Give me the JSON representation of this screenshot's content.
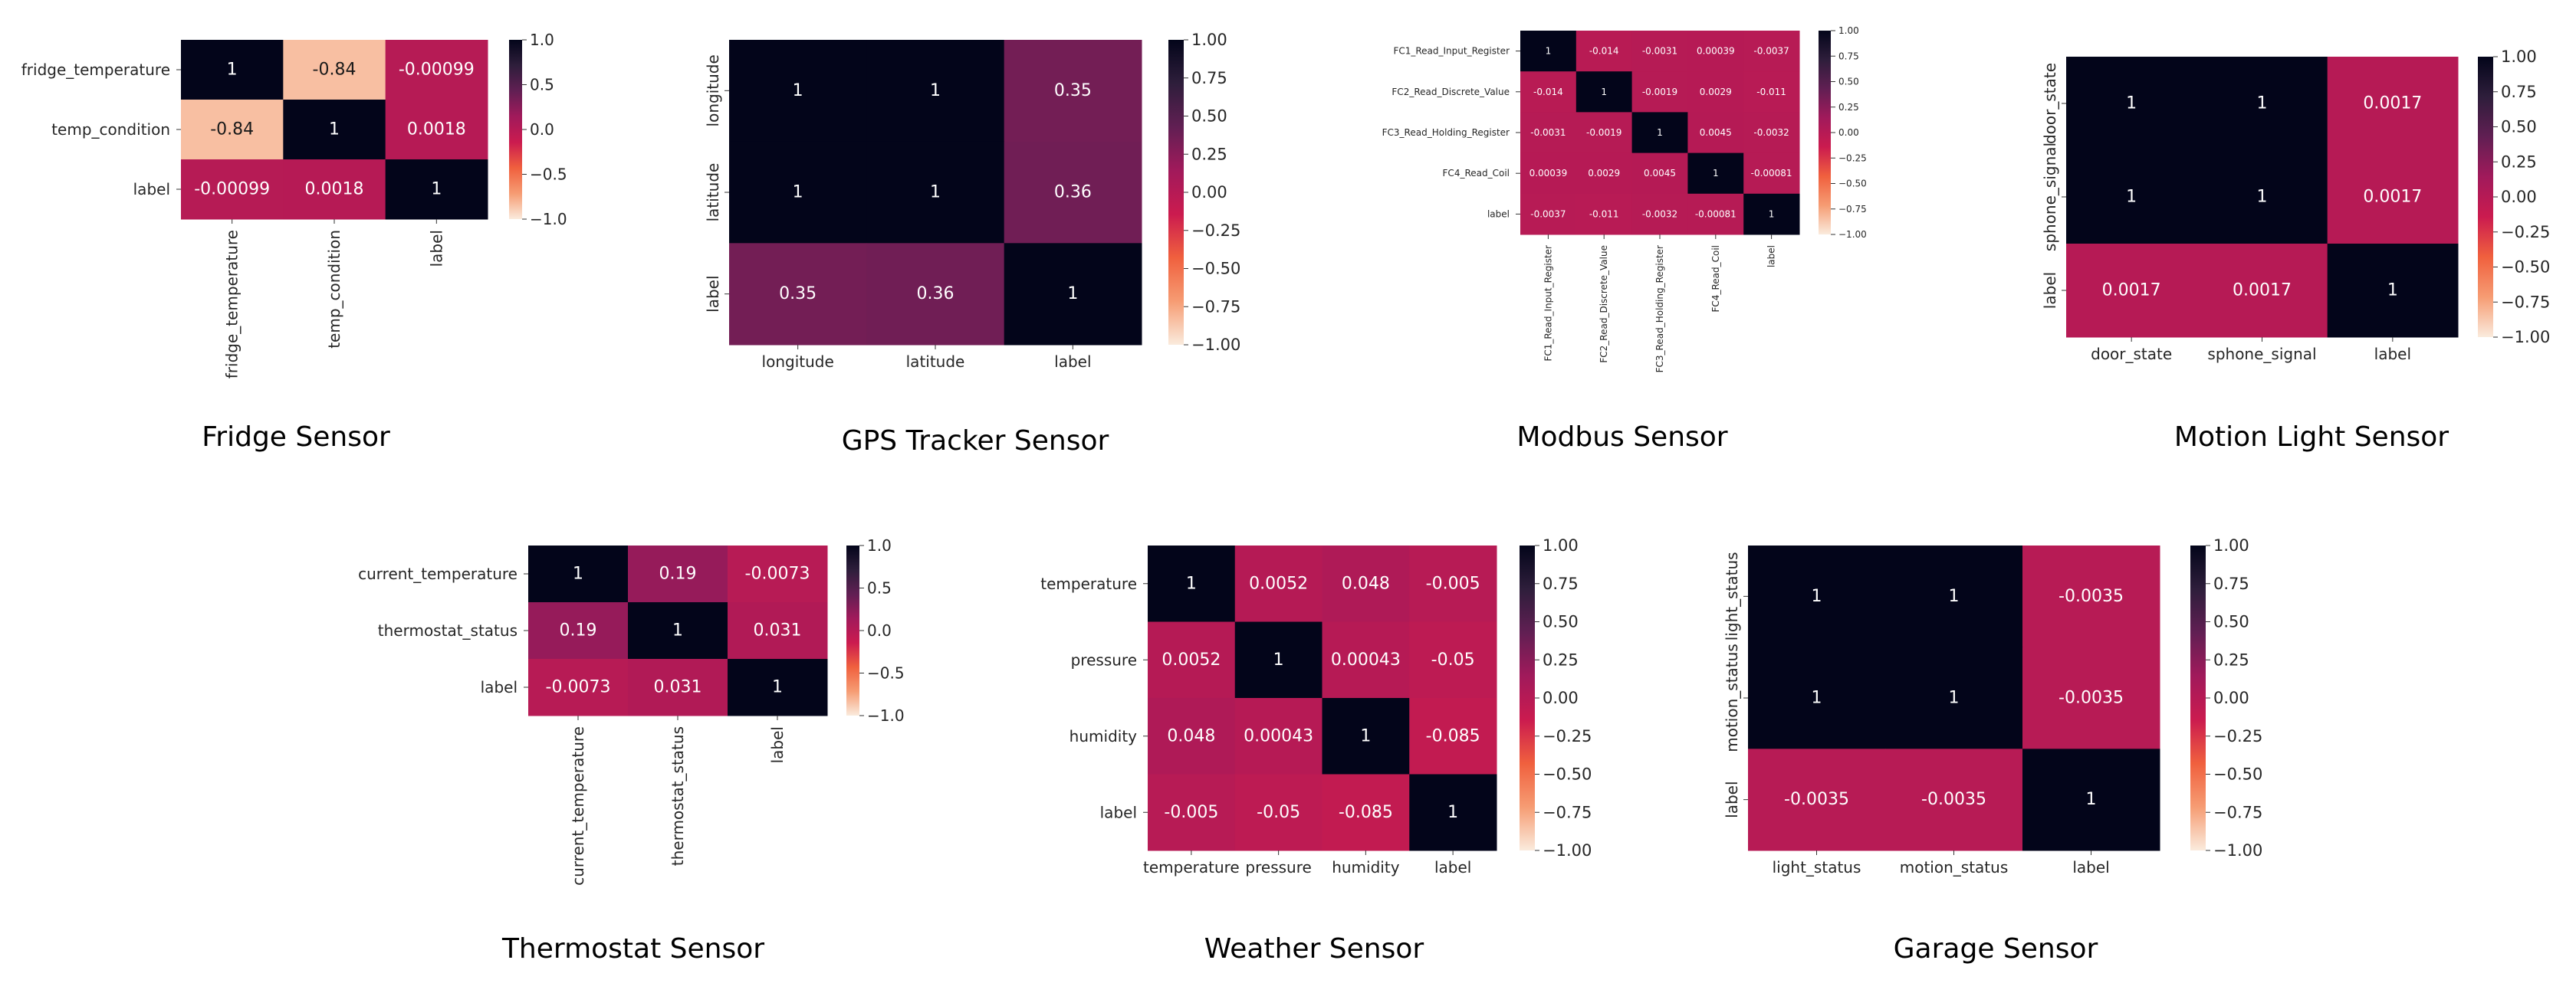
{
  "figure": {
    "title": ""
  },
  "colorscale": {
    "stops": [
      "#faebdd",
      "#f69c73",
      "#f0603e",
      "#cb1b4f",
      "#a11a5b",
      "#611f53",
      "#2e1e3b",
      "#03051a"
    ],
    "vmin": -1,
    "vmax": 1
  },
  "chart_data": [
    {
      "type": "heatmap",
      "title": "Fridge Sensor",
      "rows": [
        "fridge_temperature",
        "temp_condition",
        "label"
      ],
      "cols": [
        "fridge_temperature",
        "temp_condition",
        "label"
      ],
      "values": [
        [
          1,
          -0.84,
          -0.00099
        ],
        [
          -0.84,
          1,
          0.0018
        ],
        [
          -0.00099,
          0.0018,
          1
        ]
      ],
      "cell_labels": [
        [
          "1",
          "-0.84",
          "-0.00099"
        ],
        [
          "-0.84",
          "1",
          "0.0018"
        ],
        [
          "-0.00099",
          "0.0018",
          "1"
        ]
      ],
      "colorbar_ticks": [
        "1.0",
        "0.5",
        "0.0",
        "−0.5",
        "−1.0"
      ],
      "colorbar_values": [
        1.0,
        0.5,
        0.0,
        -0.5,
        -1.0
      ],
      "col_label_rotation": "vertical"
    },
    {
      "type": "heatmap",
      "title": "GPS Tracker Sensor",
      "rows": [
        "longitude",
        "latitude",
        "label"
      ],
      "cols": [
        "longitude",
        "latitude",
        "label"
      ],
      "values": [
        [
          1,
          1,
          0.35
        ],
        [
          1,
          1,
          0.36
        ],
        [
          0.35,
          0.36,
          1
        ]
      ],
      "cell_labels": [
        [
          "1",
          "1",
          "0.35"
        ],
        [
          "1",
          "1",
          "0.36"
        ],
        [
          "0.35",
          "0.36",
          "1"
        ]
      ],
      "colorbar_ticks": [
        "1.00",
        "0.75",
        "0.50",
        "0.25",
        "0.00",
        "−0.25",
        "−0.50",
        "−0.75",
        "−1.00"
      ],
      "colorbar_values": [
        1.0,
        0.75,
        0.5,
        0.25,
        0.0,
        -0.25,
        -0.5,
        -0.75,
        -1.0
      ],
      "row_label_rotation": "vertical"
    },
    {
      "type": "heatmap",
      "title": "Modbus Sensor",
      "rows": [
        "FC1_Read_Input_Register",
        "FC2_Read_Discrete_Value",
        "FC3_Read_Holding_Register",
        "FC4_Read_Coil",
        "label"
      ],
      "cols": [
        "FC1_Read_Input_Register",
        "FC2_Read_Discrete_Value",
        "FC3_Read_Holding_Register",
        "FC4_Read_Coil",
        "label"
      ],
      "values": [
        [
          1,
          -0.014,
          -0.0031,
          0.00039,
          -0.0037
        ],
        [
          -0.014,
          1,
          -0.0019,
          0.0029,
          -0.011
        ],
        [
          -0.0031,
          -0.0019,
          1,
          0.0045,
          -0.0032
        ],
        [
          0.00039,
          0.0029,
          0.0045,
          1,
          -0.00081
        ],
        [
          -0.0037,
          -0.011,
          -0.0032,
          -0.00081,
          1
        ]
      ],
      "cell_labels": [
        [
          "1",
          "-0.014",
          "-0.0031",
          "0.00039",
          "-0.0037"
        ],
        [
          "-0.014",
          "1",
          "-0.0019",
          "0.0029",
          "-0.011"
        ],
        [
          "-0.0031",
          "-0.0019",
          "1",
          "0.0045",
          "-0.0032"
        ],
        [
          "0.00039",
          "0.0029",
          "0.0045",
          "1",
          "-0.00081"
        ],
        [
          "-0.0037",
          "-0.011",
          "-0.0032",
          "-0.00081",
          "1"
        ]
      ],
      "colorbar_ticks": [
        "1.00",
        "0.75",
        "0.50",
        "0.25",
        "0.00",
        "−0.25",
        "−0.50",
        "−0.75",
        "−1.00"
      ],
      "colorbar_values": [
        1.0,
        0.75,
        0.5,
        0.25,
        0.0,
        -0.25,
        -0.5,
        -0.75,
        -1.0
      ],
      "col_label_rotation": "vertical"
    },
    {
      "type": "heatmap",
      "title": "Motion Light Sensor",
      "rows": [
        "door_state",
        "sphone_signal",
        "label"
      ],
      "cols": [
        "door_state",
        "sphone_signal",
        "label"
      ],
      "values": [
        [
          1,
          1,
          0.0017
        ],
        [
          1,
          1,
          0.0017
        ],
        [
          0.0017,
          0.0017,
          1
        ]
      ],
      "cell_labels": [
        [
          "1",
          "1",
          "0.0017"
        ],
        [
          "1",
          "1",
          "0.0017"
        ],
        [
          "0.0017",
          "0.0017",
          "1"
        ]
      ],
      "colorbar_ticks": [
        "1.00",
        "0.75",
        "0.50",
        "0.25",
        "0.00",
        "−0.25",
        "−0.50",
        "−0.75",
        "−1.00"
      ],
      "colorbar_values": [
        1.0,
        0.75,
        0.5,
        0.25,
        0.0,
        -0.25,
        -0.5,
        -0.75,
        -1.0
      ],
      "row_label_rotation": "vertical"
    },
    {
      "type": "heatmap",
      "title": "Thermostat Sensor",
      "rows": [
        "current_temperature",
        "thermostat_status",
        "label"
      ],
      "cols": [
        "current_temperature",
        "thermostat_status",
        "label"
      ],
      "values": [
        [
          1,
          0.19,
          -0.0073
        ],
        [
          0.19,
          1,
          0.031
        ],
        [
          -0.0073,
          0.031,
          1
        ]
      ],
      "cell_labels": [
        [
          "1",
          "0.19",
          "-0.0073"
        ],
        [
          "0.19",
          "1",
          "0.031"
        ],
        [
          "-0.0073",
          "0.031",
          "1"
        ]
      ],
      "colorbar_ticks": [
        "1.0",
        "0.5",
        "0.0",
        "−0.5",
        "−1.0"
      ],
      "colorbar_values": [
        1.0,
        0.5,
        0.0,
        -0.5,
        -1.0
      ],
      "col_label_rotation": "vertical"
    },
    {
      "type": "heatmap",
      "title": "Weather Sensor",
      "rows": [
        "temperature",
        "pressure",
        "humidity",
        "label"
      ],
      "cols": [
        "temperature",
        "pressure",
        "humidity",
        "label"
      ],
      "values": [
        [
          1,
          0.0052,
          0.048,
          -0.005
        ],
        [
          0.0052,
          1,
          0.00043,
          -0.05
        ],
        [
          0.048,
          0.00043,
          1,
          -0.085
        ],
        [
          -0.005,
          -0.05,
          -0.085,
          1
        ]
      ],
      "cell_labels": [
        [
          "1",
          "0.0052",
          "0.048",
          "-0.005"
        ],
        [
          "0.0052",
          "1",
          "0.00043",
          "-0.05"
        ],
        [
          "0.048",
          "0.00043",
          "1",
          "-0.085"
        ],
        [
          "-0.005",
          "-0.05",
          "-0.085",
          "1"
        ]
      ],
      "colorbar_ticks": [
        "1.00",
        "0.75",
        "0.50",
        "0.25",
        "0.00",
        "−0.25",
        "−0.50",
        "−0.75",
        "−1.00"
      ],
      "colorbar_values": [
        1.0,
        0.75,
        0.5,
        0.25,
        0.0,
        -0.25,
        -0.5,
        -0.75,
        -1.0
      ]
    },
    {
      "type": "heatmap",
      "title": "Garage Sensor",
      "rows": [
        "light_status",
        "motion_status",
        "label"
      ],
      "cols": [
        "light_status",
        "motion_status",
        "label"
      ],
      "values": [
        [
          1,
          1,
          -0.0035
        ],
        [
          1,
          1,
          -0.0035
        ],
        [
          -0.0035,
          -0.0035,
          1
        ]
      ],
      "cell_labels": [
        [
          "1",
          "1",
          "-0.0035"
        ],
        [
          "1",
          "1",
          "-0.0035"
        ],
        [
          "-0.0035",
          "-0.0035",
          "1"
        ]
      ],
      "colorbar_ticks": [
        "1.00",
        "0.75",
        "0.50",
        "0.25",
        "0.00",
        "−0.25",
        "−0.50",
        "−0.75",
        "−1.00"
      ],
      "colorbar_values": [
        1.0,
        0.75,
        0.5,
        0.25,
        0.0,
        -0.25,
        -0.5,
        -0.75,
        -1.0
      ],
      "row_label_rotation": "vertical"
    }
  ]
}
